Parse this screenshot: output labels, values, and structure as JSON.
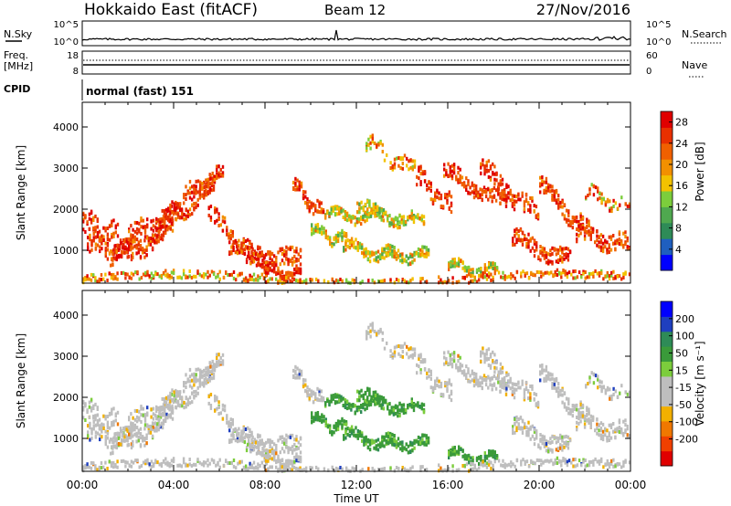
{
  "header": {
    "title": "Hokkaido East (fitACF)",
    "beam": "Beam 12",
    "date": "27/Nov/2016"
  },
  "noise_panel": {
    "left_label": "N.Sky",
    "right_label": "N.Search",
    "left_ticks": [
      "10^5",
      "10^0"
    ],
    "right_ticks": [
      "10^5",
      "10^0"
    ]
  },
  "freq_panel": {
    "left_label_1": "Freq.",
    "left_label_2": "[MHz]",
    "left_ticks": [
      "18",
      "8"
    ],
    "right_ticks": [
      "60",
      "0"
    ],
    "right_label": "Nave",
    "cpid_label": "CPID",
    "cpid_text": "normal (fast) 151"
  },
  "colors": {
    "power_scale": [
      "#0000ff",
      "#1f5fbf",
      "#2e8b57",
      "#4fa84f",
      "#7ccd3c",
      "#f2c200",
      "#f29000",
      "#f06000",
      "#e83000",
      "#e00000"
    ],
    "velocity_scale": [
      "#e00000",
      "#f04000",
      "#f07800",
      "#f2b000",
      "#bebebe",
      "#bebebe",
      "#7ccd3c",
      "#3a9a3a",
      "#2e8b57",
      "#1f3fbf",
      "#0000ff"
    ]
  },
  "chart_data": [
    {
      "type": "heatmap",
      "name": "power",
      "xlabel": "",
      "ylabel": "Slant Range [km]",
      "yticks": [
        1000,
        2000,
        3000,
        4000
      ],
      "ylim": [
        200,
        4600
      ],
      "xlim_hours": [
        0,
        24
      ],
      "colorbar": {
        "label": "Power [dB]",
        "ticks": [
          "28",
          "24",
          "20",
          "16",
          "12",
          "8",
          "4"
        ],
        "range": [
          0,
          30
        ]
      }
    },
    {
      "type": "heatmap",
      "name": "velocity",
      "xlabel": "Time UT",
      "ylabel": "Slant Range [km]",
      "yticks": [
        1000,
        2000,
        3000,
        4000
      ],
      "ylim": [
        200,
        4600
      ],
      "xlim_hours": [
        0,
        24
      ],
      "xtick_labels": [
        "00:00",
        "04:00",
        "08:00",
        "12:00",
        "16:00",
        "20:00",
        "00:00"
      ],
      "colorbar": {
        "label": "Velocity [m s⁻¹]",
        "ticks": [
          "200",
          "100",
          "50",
          "15",
          "-15",
          "-50",
          "-100",
          "-200"
        ],
        "range": [
          -250,
          250
        ]
      }
    }
  ]
}
